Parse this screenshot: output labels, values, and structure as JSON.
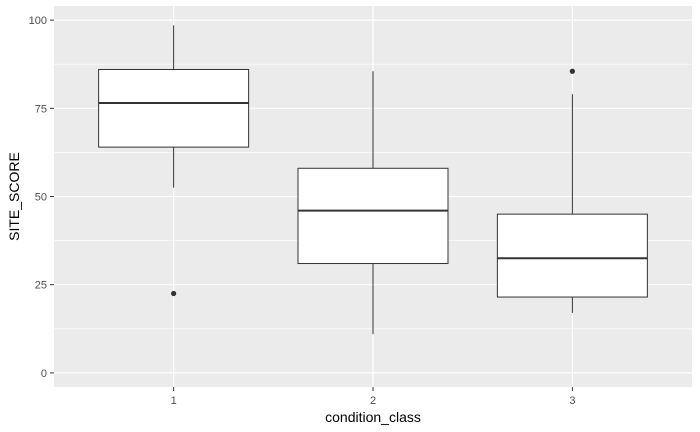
{
  "chart_data": {
    "type": "box",
    "title": "",
    "xlabel": "condition_class",
    "ylabel": "SITE_SCORE",
    "categories": [
      "1",
      "2",
      "3"
    ],
    "boxes": [
      {
        "category": "1",
        "whisker_low": 52.5,
        "q1": 64,
        "median": 76.5,
        "q3": 86,
        "whisker_high": 98.5,
        "outliers": [
          22.5
        ]
      },
      {
        "category": "2",
        "whisker_low": 11,
        "q1": 31,
        "median": 46,
        "q3": 58,
        "whisker_high": 85.5,
        "outliers": []
      },
      {
        "category": "3",
        "whisker_low": 17,
        "q1": 21.5,
        "median": 32.5,
        "q3": 45,
        "whisker_high": 79,
        "outliers": [
          85.5
        ]
      }
    ],
    "yticks": [
      0,
      25,
      50,
      75,
      100
    ],
    "ylim": [
      -4,
      104
    ],
    "grid": true,
    "legend": "none",
    "colors": {
      "panel_background": "#ebebeb",
      "grid_major": "#ffffff",
      "box_fill": "#ffffff",
      "box_stroke": "#333333",
      "tick_mark": "#333333",
      "tick_label": "#4d4d4d"
    }
  }
}
